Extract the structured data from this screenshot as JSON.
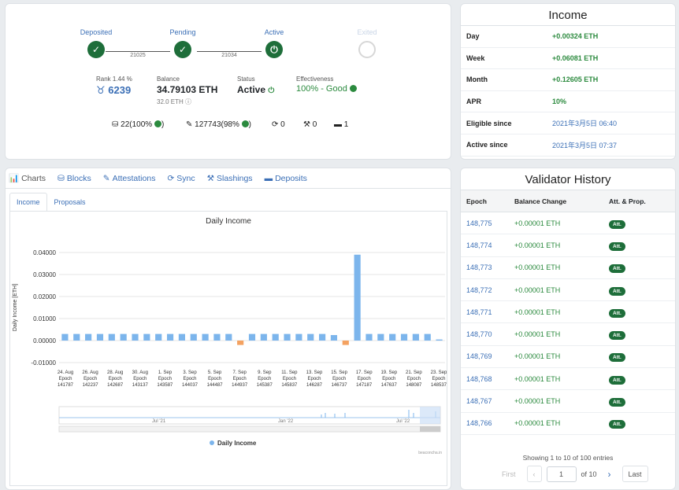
{
  "stepper": {
    "steps": [
      {
        "label": "Deposited",
        "state": "done"
      },
      {
        "label": "Pending",
        "state": "done"
      },
      {
        "label": "Active",
        "state": "power"
      },
      {
        "label": "Exited",
        "state": "todo"
      }
    ],
    "connector_epochs": [
      "21025",
      "21034"
    ]
  },
  "summary": {
    "rank_label": "Rank 1.44 %",
    "rank_value": "6239",
    "balance_label": "Balance",
    "balance_value": "34.79103 ETH",
    "effective_balance": "32.0 ETH",
    "status_label": "Status",
    "status_value": "Active",
    "effectiveness_label": "Effectiveness",
    "effectiveness_value": "100% - Good"
  },
  "counters": {
    "proposals": "22(100%",
    "attestations": "127743(98%",
    "sync": "0",
    "slashings": "0",
    "deposits": "1"
  },
  "income": {
    "title": "Income",
    "rows": [
      {
        "key": "Day",
        "value": "+0.00324 ETH"
      },
      {
        "key": "Week",
        "value": "+0.06081 ETH"
      },
      {
        "key": "Month",
        "value": "+0.12605 ETH"
      },
      {
        "key": "APR",
        "value": "10%"
      },
      {
        "key": "Eligible since",
        "value": "2021年3月5日 06:40"
      },
      {
        "key": "Active since",
        "value": "2021年3月5日 07:37"
      }
    ]
  },
  "tabs": [
    "Charts",
    "Blocks",
    "Attestations",
    "Sync",
    "Slashings",
    "Deposits"
  ],
  "subtabs": [
    "Income",
    "Proposals"
  ],
  "chart_data": {
    "type": "bar",
    "title": "Daily Income",
    "ylabel": "Daily Income [ETH]",
    "ylim": [
      -0.01,
      0.04
    ],
    "yticks": [
      "0.04000",
      "0.03000",
      "0.02000",
      "0.01000",
      "0.00000",
      "-0.01000"
    ],
    "x_tick_labels": [
      [
        "24. Aug",
        "Epoch",
        "141787"
      ],
      [
        "26. Aug",
        "Epoch",
        "142237"
      ],
      [
        "28. Aug",
        "Epoch",
        "142687"
      ],
      [
        "30. Aug",
        "Epoch",
        "143137"
      ],
      [
        "1. Sep",
        "Epoch",
        "143587"
      ],
      [
        "3. Sep",
        "Epoch",
        "144037"
      ],
      [
        "5. Sep",
        "Epoch",
        "144487"
      ],
      [
        "7. Sep",
        "Epoch",
        "144937"
      ],
      [
        "9. Sep",
        "Epoch",
        "145387"
      ],
      [
        "11. Sep",
        "Epoch",
        "145837"
      ],
      [
        "13. Sep",
        "Epoch",
        "146287"
      ],
      [
        "15. Sep",
        "Epoch",
        "146737"
      ],
      [
        "17. Sep",
        "Epoch",
        "147187"
      ],
      [
        "19. Sep",
        "Epoch",
        "147637"
      ],
      [
        "21. Sep",
        "Epoch",
        "148087"
      ],
      [
        "23. Sep",
        "Epoch",
        "148537"
      ]
    ],
    "values": [
      0.003,
      0.003,
      0.003,
      0.003,
      0.003,
      0.003,
      0.003,
      0.003,
      0.003,
      0.003,
      0.003,
      0.003,
      0.003,
      0.003,
      0.003,
      0.003,
      0.003,
      0.003,
      0.003,
      0.003,
      0.003,
      0.003,
      0.003,
      0.003,
      0.003,
      0.003,
      0.003,
      0.003,
      0.003,
      0.003,
      0.003,
      0.003,
      0.003,
      0.003,
      0.003,
      0.003,
      0.003,
      0.003,
      0.003,
      0.003,
      0.003,
      0.003,
      0.003,
      0.003
    ],
    "bars": [
      0.003,
      0.003,
      0.003,
      0.003,
      0.003,
      0.003,
      0.003,
      0.003,
      0.003,
      0.003,
      0.003,
      0.003,
      0.003,
      0.003,
      0.003,
      -0.002,
      0.003,
      0.003,
      0.003,
      0.003,
      0.003,
      0.003,
      0.003,
      0.0025,
      -0.002,
      0.039,
      0.003,
      0.003,
      0.003,
      0.003,
      0.003,
      0.003,
      0.0005
    ],
    "negative_color": "#f4a261",
    "positive_color": "#7cb5ec",
    "legend": "Daily Income",
    "navigator_labels": [
      "Jul '21",
      "Jan '22",
      "Jul '22"
    ],
    "credits": "beaconcha.in"
  },
  "history": {
    "title": "Validator History",
    "columns": [
      "Epoch",
      "Balance Change",
      "Att. & Prop."
    ],
    "rows": [
      {
        "epoch": "148,775",
        "change": "+0.00001 ETH",
        "badge": "Att."
      },
      {
        "epoch": "148,774",
        "change": "+0.00001 ETH",
        "badge": "Att."
      },
      {
        "epoch": "148,773",
        "change": "+0.00001 ETH",
        "badge": "Att."
      },
      {
        "epoch": "148,772",
        "change": "+0.00001 ETH",
        "badge": "Att."
      },
      {
        "epoch": "148,771",
        "change": "+0.00001 ETH",
        "badge": "Att."
      },
      {
        "epoch": "148,770",
        "change": "+0.00001 ETH",
        "badge": "Att."
      },
      {
        "epoch": "148,769",
        "change": "+0.00001 ETH",
        "badge": "Att."
      },
      {
        "epoch": "148,768",
        "change": "+0.00001 ETH",
        "badge": "Att."
      },
      {
        "epoch": "148,767",
        "change": "+0.00001 ETH",
        "badge": "Att."
      },
      {
        "epoch": "148,766",
        "change": "+0.00001 ETH",
        "badge": "Att."
      }
    ],
    "showing": "Showing 1 to 10 of 100 entries",
    "pager": {
      "first": "First",
      "page": "1",
      "of": "of 10",
      "last": "Last"
    }
  }
}
